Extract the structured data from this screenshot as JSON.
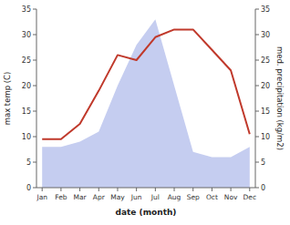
{
  "chart_data": {
    "type": "line",
    "xlabel": "date (month)",
    "ylabel": "max temp (C)",
    "y2label": "med. precipitation (kg/m2)",
    "categories": [
      "Jan",
      "Feb",
      "Mar",
      "Apr",
      "May",
      "Jun",
      "Jul",
      "Aug",
      "Sep",
      "Oct",
      "Nov",
      "Dec"
    ],
    "series": [
      {
        "type": "area",
        "axis": "y2",
        "color": "#c5cdf0",
        "values": [
          8,
          8,
          9,
          11,
          20,
          28,
          33,
          20,
          7,
          6,
          6,
          8
        ]
      },
      {
        "type": "line",
        "color": "#c0392b",
        "values": [
          9.5,
          9.5,
          12.5,
          19,
          26,
          25,
          29.5,
          31,
          31,
          27,
          23,
          10.5
        ]
      }
    ],
    "ylim": [
      0,
      35
    ],
    "yticks": [
      0,
      5,
      10,
      15,
      20,
      25,
      30,
      35
    ],
    "y2lim": [
      0,
      35
    ],
    "y2ticks": [
      0,
      5,
      10,
      15,
      20,
      25,
      30,
      35
    ],
    "grid": false
  }
}
